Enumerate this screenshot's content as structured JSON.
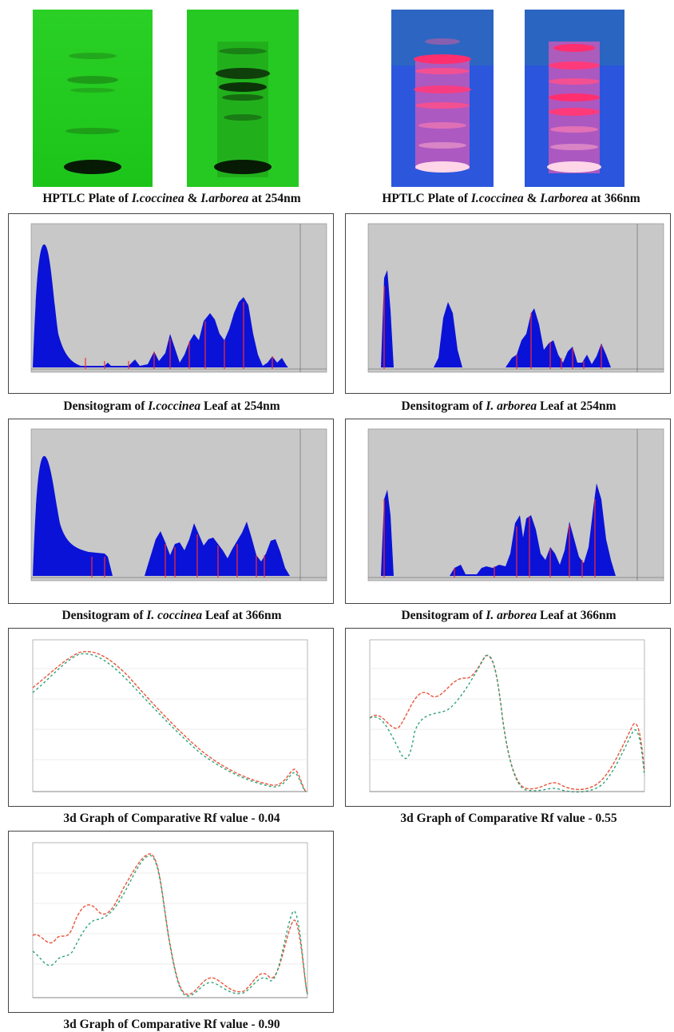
{
  "plates": {
    "uv254": {
      "caption": {
        "pre": "HPTLC Plate of ",
        "sp1": "I.coccinea",
        "mid": " & ",
        "sp2": "I.arborea",
        "post": " at 254nm"
      },
      "colors": {
        "plate": "#33d22a",
        "band": "#0a2a06"
      }
    },
    "uv366": {
      "caption": {
        "pre": "HPTLC Plate of ",
        "sp1": "I.coccinea",
        "mid": " & ",
        "sp2": "I.arborea",
        "post": " at 366nm"
      },
      "colors": {
        "plate": "#2b55d8",
        "band": "#ff3d7a"
      }
    }
  },
  "densitograms": [
    {
      "id": "coccinea-254",
      "caption": {
        "pre": "Densitogram of ",
        "sp": "I.coccinea",
        "post": " Leaf at 254nm"
      },
      "fill": "#0a12d8"
    },
    {
      "id": "arborea-254",
      "caption": {
        "pre": "Densitogram of ",
        "sp": "I. arborea",
        "post": " Leaf at 254nm"
      },
      "fill": "#0a12d8"
    },
    {
      "id": "coccinea-366",
      "caption": {
        "pre": "Densitogram of ",
        "sp": "I. coccinea",
        "post": " Leaf at 366nm"
      },
      "fill": "#0a12d8"
    },
    {
      "id": "arborea-366",
      "caption": {
        "pre": "Densitogram of ",
        "sp": "I. arborea",
        "post": " Leaf at 366nm"
      },
      "fill": "#0a12d8"
    }
  ],
  "spectra": [
    {
      "id": "rf-004",
      "caption": "3d Graph of Comparative Rf value - 0.04"
    },
    {
      "id": "rf-055",
      "caption": "3d Graph of Comparative Rf value - 0.55"
    },
    {
      "id": "rf-090",
      "caption": "3d Graph of Comparative Rf value - 0.90"
    }
  ],
  "spectra_colors": {
    "a": "#e8553a",
    "b": "#2aa37a"
  }
}
